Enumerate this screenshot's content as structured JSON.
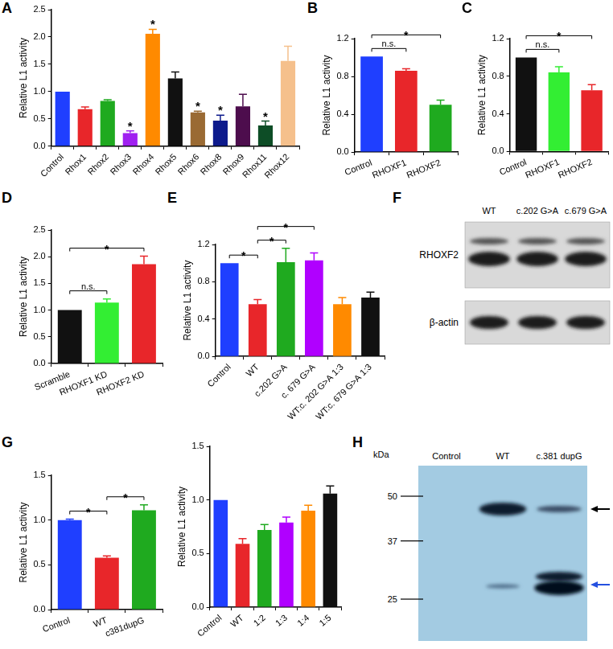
{
  "chart_data": [
    {
      "panel": "A",
      "type": "bar",
      "ylabel": "Relative L1 activity",
      "categories": [
        "Control",
        "Rhox1",
        "Rhox2",
        "Rhox3",
        "Rhox4",
        "Rhox5",
        "Rhox6",
        "Rhox8",
        "Rhox9",
        "Rhox11",
        "Rhox12"
      ],
      "values": [
        1.0,
        0.68,
        0.83,
        0.24,
        2.06,
        1.24,
        0.62,
        0.47,
        0.73,
        0.38,
        1.56
      ],
      "errors": [
        0.0,
        0.04,
        0.02,
        0.04,
        0.08,
        0.12,
        0.02,
        0.1,
        0.22,
        0.08,
        0.27
      ],
      "colors": [
        "#1f3fff",
        "#e8262a",
        "#1faa1f",
        "#a020f0",
        "#ff8a00",
        "#111111",
        "#9a6a33",
        "#0d1a8c",
        "#4d0d4d",
        "#0d4d26",
        "#f5c08c"
      ],
      "significance": [
        null,
        null,
        null,
        "*",
        "*",
        null,
        "*",
        "*",
        null,
        "*",
        null
      ],
      "ylim": [
        0,
        2.5
      ],
      "yticks": [
        {
          "value": 0,
          "label": "0.0"
        },
        0.5,
        {
          "value": 1,
          "label": "1.0"
        },
        1.5,
        {
          "value": 2,
          "label": "2.0"
        },
        2.5
      ],
      "grid": false
    },
    {
      "panel": "B",
      "type": "bar",
      "ylabel": "Relative L1 activity",
      "categories": [
        "Control",
        "RHOXF1",
        "RHOXF2"
      ],
      "values": [
        1.01,
        0.86,
        0.5
      ],
      "errors": [
        0.0,
        0.02,
        0.05
      ],
      "colors": [
        "#1f3fff",
        "#e8262a",
        "#1faa1f"
      ],
      "brackets": [
        {
          "from": "Control",
          "to": "RHOXF1",
          "label": "n.s."
        },
        {
          "from": "Control",
          "to": "RHOXF2",
          "label": "*"
        }
      ],
      "ylim": [
        0,
        1.2
      ],
      "yticks": [
        {
          "value": 0,
          "label": "0.0"
        },
        0.4,
        0.8,
        1.2
      ],
      "grid": false
    },
    {
      "panel": "C",
      "type": "bar",
      "ylabel": "Relative L1 activity",
      "categories": [
        "Control",
        "RHOXF1",
        "RHOXF2"
      ],
      "values": [
        1.0,
        0.84,
        0.65
      ],
      "errors": [
        0.0,
        0.06,
        0.06
      ],
      "colors": [
        "#111111",
        "#33ee33",
        "#e8262a"
      ],
      "brackets": [
        {
          "from": "Control",
          "to": "RHOXF1",
          "label": "n.s."
        },
        {
          "from": "Control",
          "to": "RHOXF2",
          "label": "*"
        }
      ],
      "ylim": [
        0,
        1.2
      ],
      "yticks": [
        {
          "value": 0,
          "label": "0.0"
        },
        0.4,
        0.8,
        1.2
      ],
      "grid": false
    },
    {
      "panel": "D",
      "type": "bar",
      "ylabel": "Relative L1 activity",
      "categories": [
        "Scramble",
        "RHOXF1 KD",
        "RHOXF2 KD"
      ],
      "values": [
        1.0,
        1.14,
        1.86
      ],
      "errors": [
        0.0,
        0.07,
        0.15
      ],
      "colors": [
        "#111111",
        "#33ee33",
        "#e8262a"
      ],
      "brackets": [
        {
          "from": "Scramble",
          "to": "RHOXF1 KD",
          "label": "n.s."
        },
        {
          "from": "Scramble",
          "to": "RHOXF2 KD",
          "label": "*"
        }
      ],
      "ylim": [
        0,
        2.5
      ],
      "yticks": [
        {
          "value": 0,
          "label": "0.0"
        },
        0.5,
        {
          "value": 1,
          "label": "1.0"
        },
        1.5,
        {
          "value": 2,
          "label": "2.0"
        },
        2.5
      ],
      "grid": false
    },
    {
      "panel": "E",
      "type": "bar",
      "ylabel": "Relative L1 activity",
      "categories": [
        "Control",
        "WT",
        "c.202 G>A",
        "c. 679 G>A",
        "WT:c. 202 G>A 1:3",
        "WT:c. 679 G>A 1:3"
      ],
      "values": [
        1.0,
        0.56,
        1.01,
        1.03,
        0.56,
        0.63
      ],
      "errors": [
        0.0,
        0.05,
        0.15,
        0.08,
        0.07,
        0.06
      ],
      "colors": [
        "#1f3fff",
        "#e8262a",
        "#1faa1f",
        "#b000ff",
        "#ff8a00",
        "#111111"
      ],
      "brackets": [
        {
          "from": "Control",
          "to": "WT",
          "label": "*"
        },
        {
          "from": "WT",
          "to": "c.202 G>A",
          "label": "*"
        },
        {
          "from": "WT",
          "to": "c. 679 G>A",
          "label": "*"
        }
      ],
      "ylim": [
        0,
        1.2
      ],
      "yticks": [
        {
          "value": 0,
          "label": "0.0"
        },
        0.4,
        0.8,
        1.2
      ],
      "grid": false
    },
    {
      "panel": "G",
      "type": "bar",
      "ylabel": "Relative L1 activity",
      "categories": [
        "Control",
        "WT",
        "c381dupG"
      ],
      "values": [
        1.0,
        0.58,
        1.11
      ],
      "errors": [
        0.01,
        0.02,
        0.06
      ],
      "colors": [
        "#1f3fff",
        "#e8262a",
        "#1faa1f"
      ],
      "brackets": [
        {
          "from": "Control",
          "to": "WT",
          "label": "*"
        },
        {
          "from": "WT",
          "to": "c381dupG",
          "label": "*"
        }
      ],
      "ylim": [
        0,
        1.5
      ],
      "yticks": [
        {
          "value": 0,
          "label": "0.0"
        },
        0.5,
        {
          "value": 1,
          "label": "1.0"
        },
        1.5
      ],
      "grid": false
    },
    {
      "type": "bar",
      "ylabel": "Relative L1 activity",
      "categories": [
        "Control",
        "WT",
        "1:2",
        "1:3",
        "1:4",
        "1:5"
      ],
      "values": [
        1.0,
        0.59,
        0.72,
        0.79,
        0.9,
        1.06
      ],
      "errors": [
        0.0,
        0.05,
        0.05,
        0.05,
        0.05,
        0.07
      ],
      "colors": [
        "#1f3fff",
        "#e8262a",
        "#1faa1f",
        "#b000ff",
        "#ff8a00",
        "#111111"
      ],
      "ylim": [
        0,
        1.5
      ],
      "yticks": [
        {
          "value": 0,
          "label": "0.0"
        },
        0.5,
        {
          "value": 1,
          "label": "1.0"
        },
        1.5
      ],
      "grid": false
    }
  ],
  "blots": [
    {
      "panel": "F",
      "lanes": [
        "WT",
        "c.202 G>A",
        "c.679 G>A"
      ],
      "rows": [
        "RHOXF2",
        "β-actin"
      ]
    },
    {
      "panel": "H",
      "unit": "kDa",
      "markers": [
        50,
        37,
        25
      ],
      "lanes": [
        "Control",
        "WT",
        "c.381 dupG"
      ]
    }
  ]
}
